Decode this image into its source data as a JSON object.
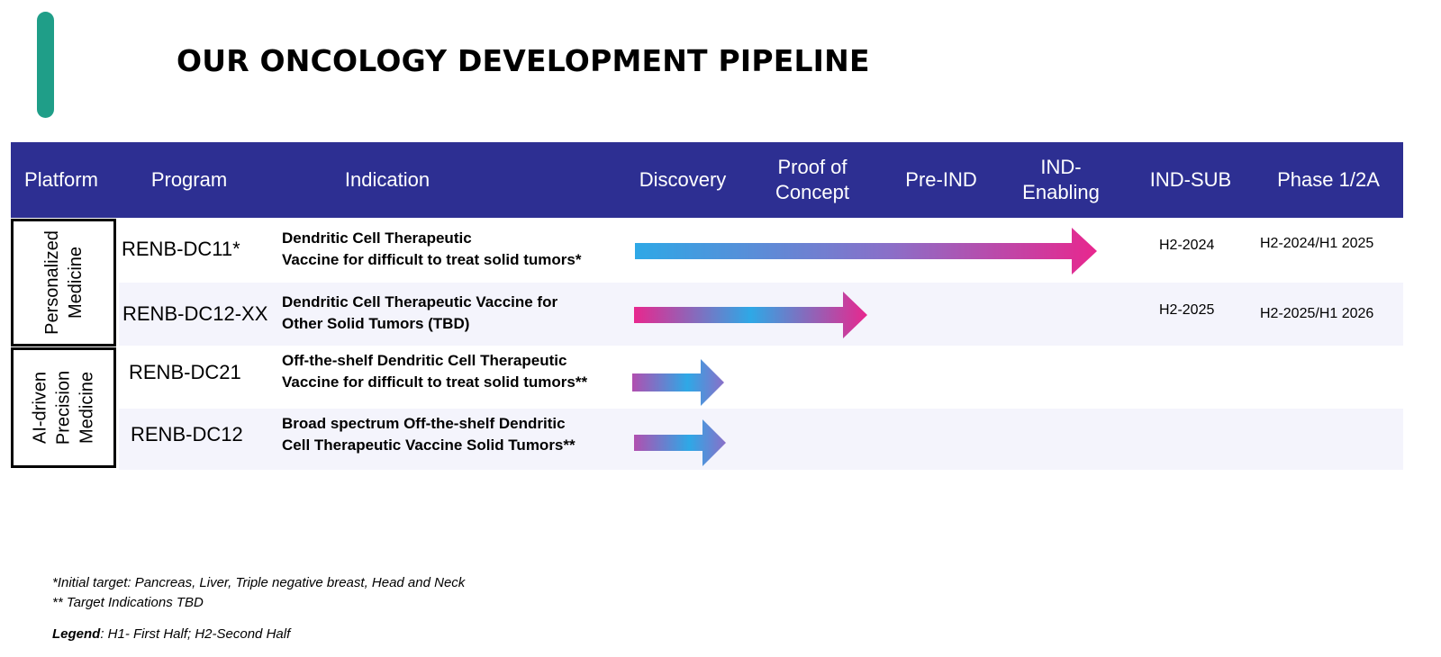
{
  "title": "OUR ONCOLOGY DEVELOPMENT PIPELINE",
  "columns": [
    "Platform",
    "Program",
    "Indication",
    "Discovery",
    "Proof of\nConcept",
    "Pre-IND",
    "IND-\nEnabling",
    "IND-SUB",
    "Phase 1/2A"
  ],
  "platforms": [
    "Personalized\nMedicine",
    "AI-driven\nPrecision\nMedicine"
  ],
  "programs": [
    {
      "name": "RENB-DC11*",
      "indication": "Dendritic Cell Therapeutic\nVaccine for difficult to treat solid tumors*",
      "ind_sub": "H2-2024",
      "phase": "H2-2024/H1 2025",
      "progress_stage": 4
    },
    {
      "name": "RENB-DC12-XX",
      "indication": "Dendritic Cell Therapeutic Vaccine for\nOther Solid Tumors (TBD)",
      "ind_sub": "H2-2025",
      "phase": "H2-2025/H1 2026",
      "progress_stage": 2
    },
    {
      "name": "RENB-DC21",
      "indication": "Off-the-shelf Dendritic Cell Therapeutic\nVaccine for difficult to treat solid tumors**",
      "ind_sub": "",
      "phase": "",
      "progress_stage": 1
    },
    {
      "name": "RENB-DC12",
      "indication": "Broad spectrum Off-the-shelf Dendritic\nCell Therapeutic Vaccine Solid Tumors**",
      "ind_sub": "",
      "phase": "",
      "progress_stage": 1
    }
  ],
  "footnotes": {
    "note1": "*Initial target: Pancreas, Liver, Triple negative breast, Head and Neck",
    "note2": "** Target Indications TBD",
    "legend_label": "Legend",
    "legend_text": ": H1- First Half; H2-Second Half"
  },
  "colors": {
    "header": "#2d2f92",
    "accent": "#1f9e88",
    "arrow_blue": "#2ea8e6",
    "arrow_purple": "#8a6fc8",
    "arrow_pink": "#e8278e"
  }
}
